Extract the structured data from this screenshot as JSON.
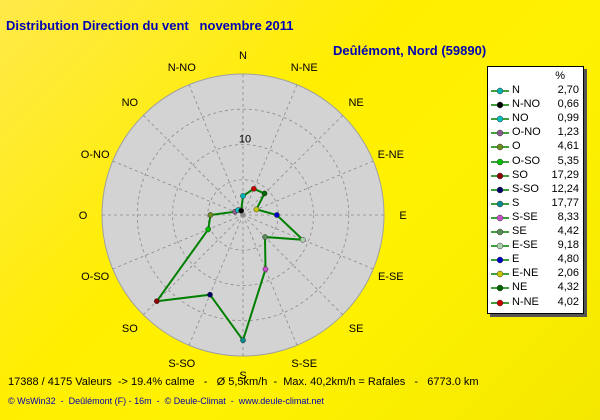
{
  "title": "Distribution Direction du vent   novembre 2011",
  "subtitle": "Deûlémont, Nord (59890)",
  "legend_header": "%",
  "footer": "17388 / 4175 Valeurs  -> 19.4% calme   -   Ø 5,5km/h  -  Max. 40,2km/h = Rafales   -   6773.0 km",
  "credits": "© WsWin32  -  Deûlémont (F) - 16m  -  © Deule-Climat  -  www.deule-climat.net",
  "chart_data": {
    "type": "radar",
    "title": "Distribution Direction du vent   novembre 2011",
    "subtitle": "Deûlémont, Nord (59890)",
    "axis_labels": [
      "N",
      "N-NE",
      "NE",
      "E-NE",
      "E",
      "E-SE",
      "SE",
      "S-SE",
      "S",
      "S-SO",
      "SO",
      "O-SO",
      "O",
      "O-NO",
      "NO",
      "N-NO"
    ],
    "ring_label": "10",
    "rmax": 20,
    "rings": [
      5,
      10,
      15,
      20
    ],
    "grid": true,
    "legend_position": "right",
    "line_color": "#008000",
    "series": [
      {
        "name": "N",
        "value": 2.7,
        "color": "#00b4b4"
      },
      {
        "name": "N-NO",
        "value": 0.66,
        "color": "#000000"
      },
      {
        "name": "NO",
        "value": 0.99,
        "color": "#00c0c0"
      },
      {
        "name": "O-NO",
        "value": 1.23,
        "color": "#8c5a8c"
      },
      {
        "name": "O",
        "value": 4.61,
        "color": "#6e8c1e"
      },
      {
        "name": "O-SO",
        "value": 5.35,
        "color": "#00c000"
      },
      {
        "name": "SO",
        "value": 17.29,
        "color": "#8c0000"
      },
      {
        "name": "S-SO",
        "value": 12.24,
        "color": "#000064"
      },
      {
        "name": "S",
        "value": 17.77,
        "color": "#008c8c"
      },
      {
        "name": "S-SE",
        "value": 8.33,
        "color": "#c850c8"
      },
      {
        "name": "SE",
        "value": 4.42,
        "color": "#5a8c5a"
      },
      {
        "name": "E-SE",
        "value": 9.18,
        "color": "#aad2aa"
      },
      {
        "name": "E",
        "value": 4.8,
        "color": "#0000c8"
      },
      {
        "name": "E-NE",
        "value": 2.06,
        "color": "#c8c800"
      },
      {
        "name": "NE",
        "value": 4.32,
        "color": "#006400"
      },
      {
        "name": "N-NE",
        "value": 4.02,
        "color": "#c80000"
      }
    ]
  }
}
